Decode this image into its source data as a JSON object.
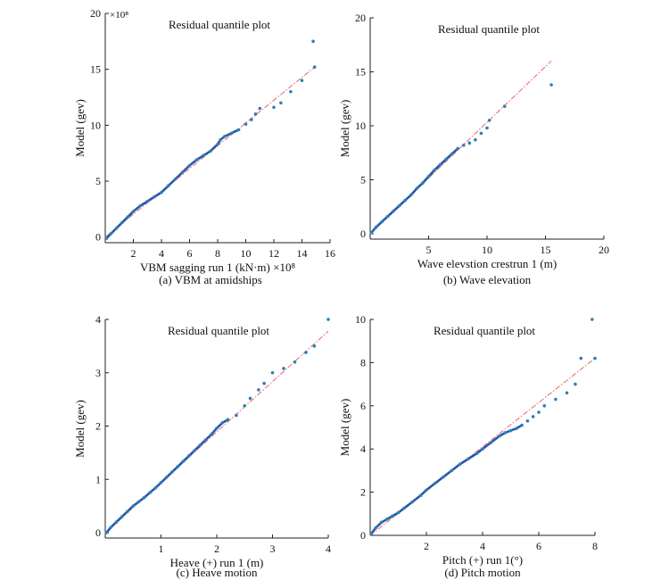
{
  "chart_data": [
    {
      "type": "scatter",
      "title": "Residual quantile plot",
      "xlabel": "VBM sagging run 1 (kN·m) ×10⁸",
      "ylabel": "Model (gev)",
      "caption": "(a) VBM at amidships",
      "multiplier": "×10⁸",
      "xlim": [
        0,
        16
      ],
      "ylim": [
        -0.5,
        20
      ],
      "xticks": [
        2,
        4,
        6,
        8,
        10,
        12,
        14,
        16
      ],
      "yticks": [
        0,
        5,
        10,
        15,
        20
      ],
      "fit_line": [
        [
          0,
          0
        ],
        [
          15,
          15.3
        ]
      ],
      "x": [
        0.1,
        0.4,
        0.8,
        1.2,
        1.6,
        2.0,
        2.5,
        3.0,
        3.5,
        4.0,
        4.5,
        5.0,
        5.5,
        6.0,
        6.5,
        7.0,
        7.5,
        8.0,
        8.2,
        8.5,
        9.0,
        9.5,
        10.0,
        10.4,
        10.7,
        11.0,
        12.0,
        12.5,
        13.2,
        14.0,
        14.8,
        14.9
      ],
      "y": [
        -0.1,
        0.3,
        0.8,
        1.3,
        1.8,
        2.3,
        2.8,
        3.2,
        3.6,
        4.0,
        4.6,
        5.2,
        5.8,
        6.4,
        6.9,
        7.3,
        7.7,
        8.3,
        8.7,
        9.0,
        9.3,
        9.6,
        10.1,
        10.5,
        11.0,
        11.5,
        11.6,
        12.0,
        13.0,
        14.0,
        17.5,
        15.2
      ]
    },
    {
      "type": "scatter",
      "title": "Residual quantile plot",
      "xlabel": "Wave elevstion crestrun 1 (m)",
      "ylabel": "Model (gev)",
      "caption": "(b) Wave elevation",
      "xlim": [
        0,
        20
      ],
      "ylim": [
        -0.5,
        20
      ],
      "xticks": [
        5,
        10,
        15,
        20
      ],
      "yticks": [
        0,
        5,
        10,
        15,
        20
      ],
      "fit_line": [
        [
          0,
          0
        ],
        [
          15.5,
          16.0
        ]
      ],
      "x": [
        0.1,
        0.5,
        1.0,
        1.5,
        2.0,
        2.5,
        3.0,
        3.5,
        4.0,
        4.5,
        5.0,
        5.5,
        6.0,
        6.5,
        7.0,
        7.5,
        8.0,
        8.5,
        9.0,
        9.5,
        10.0,
        10.2,
        11.5,
        15.5
      ],
      "y": [
        0.1,
        0.6,
        1.1,
        1.6,
        2.1,
        2.6,
        3.1,
        3.6,
        4.2,
        4.7,
        5.3,
        5.9,
        6.4,
        6.9,
        7.4,
        7.9,
        8.2,
        8.4,
        8.7,
        9.3,
        9.8,
        10.5,
        11.8,
        13.8
      ]
    },
    {
      "type": "scatter",
      "title": "Residual quantile plot",
      "xlabel": "Heave (+) run 1 (m)",
      "ylabel": "Model (gev)",
      "caption": "(c) Heave motion",
      "xlim": [
        0,
        4
      ],
      "ylim": [
        -0.1,
        4
      ],
      "xticks": [
        1,
        2,
        3,
        4
      ],
      "yticks": [
        0,
        1,
        2,
        3,
        4
      ],
      "fit_line": [
        [
          0,
          0
        ],
        [
          4,
          3.78
        ]
      ],
      "x": [
        0.02,
        0.1,
        0.2,
        0.3,
        0.4,
        0.5,
        0.6,
        0.7,
        0.8,
        0.9,
        1.0,
        1.1,
        1.2,
        1.3,
        1.4,
        1.5,
        1.6,
        1.7,
        1.8,
        1.9,
        2.0,
        2.1,
        2.2,
        2.35,
        2.5,
        2.6,
        2.75,
        2.85,
        3.0,
        3.2,
        3.4,
        3.6,
        3.75,
        4.0
      ],
      "y": [
        0.0,
        0.1,
        0.2,
        0.3,
        0.4,
        0.5,
        0.58,
        0.66,
        0.75,
        0.84,
        0.94,
        1.04,
        1.14,
        1.24,
        1.34,
        1.44,
        1.54,
        1.64,
        1.74,
        1.84,
        1.96,
        2.06,
        2.12,
        2.2,
        2.38,
        2.52,
        2.68,
        2.8,
        3.0,
        3.08,
        3.2,
        3.38,
        3.5,
        4.0
      ]
    },
    {
      "type": "scatter",
      "title": "Residual quantile plot",
      "xlabel": "Pitch (+) run 1(°)",
      "ylabel": "Model (gev)",
      "caption": "(d) Pitch motion",
      "xlim": [
        0,
        8
      ],
      "ylim": [
        0,
        10
      ],
      "xticks": [
        2,
        4,
        6,
        8
      ],
      "yticks": [
        0,
        2,
        4,
        6,
        8,
        10
      ],
      "fit_line": [
        [
          0,
          0
        ],
        [
          8,
          8.2
        ]
      ],
      "x": [
        0.05,
        0.2,
        0.4,
        0.6,
        0.8,
        1.0,
        1.2,
        1.5,
        1.8,
        2.0,
        2.3,
        2.6,
        2.9,
        3.2,
        3.5,
        3.8,
        4.0,
        4.3,
        4.6,
        4.8,
        5.0,
        5.2,
        5.4,
        5.6,
        5.8,
        6.0,
        6.2,
        6.6,
        7.0,
        7.3,
        7.5,
        7.9,
        8.0
      ],
      "y": [
        0.1,
        0.35,
        0.6,
        0.75,
        0.9,
        1.05,
        1.25,
        1.55,
        1.85,
        2.1,
        2.4,
        2.7,
        3.0,
        3.3,
        3.55,
        3.8,
        4.0,
        4.3,
        4.6,
        4.75,
        4.85,
        4.95,
        5.1,
        5.3,
        5.5,
        5.7,
        6.0,
        6.3,
        6.6,
        7.0,
        8.2,
        10.0,
        8.2
      ]
    }
  ]
}
